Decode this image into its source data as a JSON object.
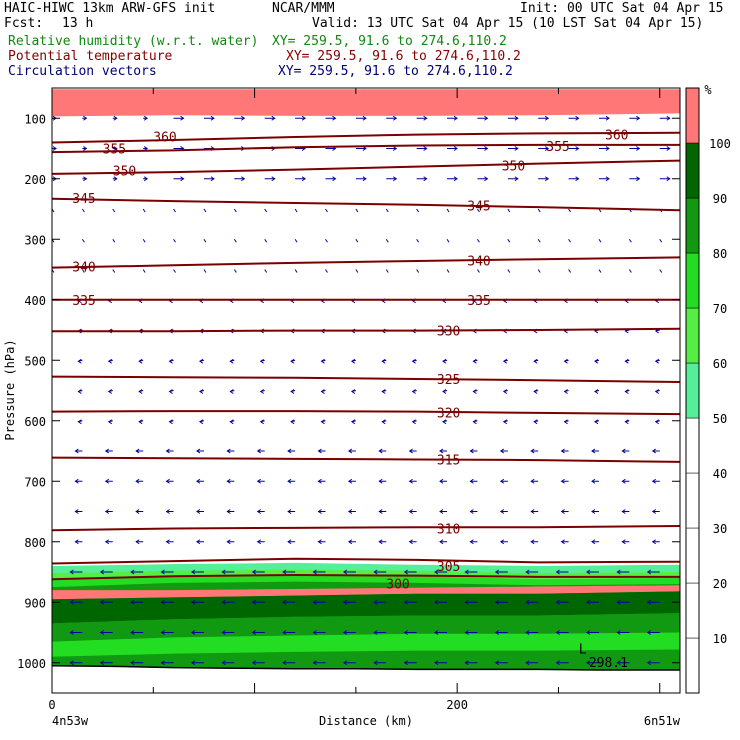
{
  "header": {
    "model": "HAIC-HIWC 13km ARW-GFS init",
    "org": "NCAR/MMM",
    "init": "Init: 00 UTC Sat 04 Apr 15",
    "fcst_label": "Fcst:",
    "fcst_value": "13 h",
    "valid": "Valid: 13 UTC Sat 04 Apr 15 (10 LST Sat 04 Apr 15)",
    "field1_name": "Relative humidity (w.r.t. water)",
    "field1_xy": "XY= 259.5, 91.6 to 274.6,110.2",
    "field2_name": "Potential temperature",
    "field2_xy": "XY= 259.5, 91.6 to 274.6,110.2",
    "field3_name": "Circulation vectors",
    "field3_xy": "XY= 259.5, 91.6 to 274.6,110.2"
  },
  "colors": {
    "rh_fill": [
      "#ffffff",
      "#ffffff",
      "#ffffff",
      "#ffffff",
      "#ffffff",
      "#55ee99",
      "#55ee44",
      "#22dd22",
      "#119911",
      "#006600",
      "#ff7777",
      "#770000"
    ],
    "theta": "#7a0000",
    "vectors": "#000099"
  },
  "chart_data": {
    "type": "heatmap",
    "xlabel": "Distance (km)",
    "ylabel": "Pressure (hPa)",
    "x_ticks": [
      "0",
      "200"
    ],
    "x_tick_values": [
      0,
      200
    ],
    "xlim": [
      0,
      310
    ],
    "y_ticks": [
      "100",
      "200",
      "300",
      "400",
      "500",
      "600",
      "700",
      "800",
      "900",
      "1000"
    ],
    "y_tick_values": [
      100,
      200,
      300,
      400,
      500,
      600,
      700,
      800,
      900,
      1000
    ],
    "ylim": [
      1050,
      50
    ],
    "left_endpoint": "4n53w",
    "right_endpoint": "6n51w",
    "colorbar": {
      "unit": "%",
      "ticks": [
        "10",
        "20",
        "30",
        "40",
        "50",
        "60",
        "70",
        "80",
        "90",
        "100"
      ],
      "levels": [
        0,
        10,
        20,
        30,
        40,
        50,
        60,
        70,
        80,
        90,
        100,
        110
      ]
    },
    "surface_pressure": [
      1005,
      1006,
      1008,
      1009,
      1010,
      1010,
      1011,
      1011,
      1011,
      1012,
      1012,
      1012
    ],
    "surface_x": [
      0,
      30,
      60,
      90,
      120,
      150,
      180,
      210,
      240,
      270,
      300,
      310
    ],
    "rh_bands": [
      {
        "level_pct": 105,
        "top": [
          52,
          52,
          52,
          52,
          52,
          52
        ],
        "bottom": [
          97,
          95,
          96,
          96,
          95,
          92
        ],
        "x": [
          0,
          60,
          120,
          180,
          240,
          310
        ]
      },
      {
        "level_pct": 55,
        "top": [
          840,
          837,
          835,
          838,
          840,
          838
        ],
        "bottom": [
          1050,
          1050,
          1050,
          1050,
          1050,
          1050
        ],
        "x": [
          0,
          60,
          120,
          180,
          240,
          310
        ]
      },
      {
        "level_pct": 65,
        "top": [
          852,
          848,
          846,
          848,
          852,
          850
        ],
        "bottom": [
          1050,
          1050,
          1050,
          1050,
          1050,
          1050
        ],
        "x": [
          0,
          60,
          120,
          180,
          240,
          310
        ]
      },
      {
        "level_pct": 75,
        "top": [
          862,
          858,
          855,
          857,
          862,
          860
        ],
        "bottom": [
          1050,
          1050,
          1050,
          1050,
          1050,
          1050
        ],
        "x": [
          0,
          60,
          120,
          180,
          240,
          310
        ]
      },
      {
        "level_pct": 85,
        "top": [
          875,
          868,
          866,
          868,
          872,
          870
        ],
        "bottom": [
          1050,
          1050,
          1050,
          1050,
          1050,
          1050
        ],
        "x": [
          0,
          60,
          120,
          180,
          240,
          310
        ]
      },
      {
        "level_pct": 105,
        "top": [
          880,
          880,
          878,
          876,
          874,
          872
        ],
        "bottom": [
          895,
          892,
          889,
          886,
          886,
          882
        ],
        "x": [
          0,
          60,
          120,
          180,
          240,
          310
        ]
      },
      {
        "level_pct": 95,
        "top": [
          895,
          892,
          889,
          886,
          886,
          882
        ],
        "bottom": [
          935,
          928,
          924,
          922,
          922,
          918
        ],
        "x": [
          0,
          60,
          120,
          180,
          240,
          310
        ]
      },
      {
        "level_pct": 85,
        "top": [
          935,
          928,
          924,
          922,
          922,
          918
        ],
        "bottom": [
          965,
          958,
          955,
          952,
          952,
          950
        ],
        "x": [
          0,
          60,
          120,
          180,
          240,
          310
        ]
      },
      {
        "level_pct": 75,
        "top": [
          965,
          958,
          955,
          952,
          952,
          950
        ],
        "bottom": [
          990,
          985,
          982,
          980,
          980,
          978
        ],
        "x": [
          0,
          60,
          120,
          180,
          240,
          310
        ]
      }
    ],
    "theta_contours": [
      {
        "value": "300",
        "p": [
          862,
          857,
          855,
          856,
          858,
          858
        ],
        "x": [
          0,
          60,
          120,
          180,
          240,
          310
        ],
        "label_at": [
          165,
          869
        ]
      },
      {
        "value": "305",
        "p": [
          836,
          832,
          828,
          830,
          834,
          833
        ],
        "x": [
          0,
          60,
          120,
          180,
          240,
          310
        ],
        "label_at": [
          190,
          840
        ]
      },
      {
        "value": "310",
        "p": [
          781,
          778,
          777,
          776,
          776,
          774
        ],
        "x": [
          0,
          60,
          120,
          180,
          240,
          310
        ],
        "label_at": [
          190,
          778
        ]
      },
      {
        "value": "315",
        "p": [
          661,
          662,
          663,
          664,
          665,
          668
        ],
        "x": [
          0,
          60,
          120,
          180,
          240,
          310
        ],
        "label_at": [
          190,
          664
        ]
      },
      {
        "value": "320",
        "p": [
          585,
          584,
          584,
          585,
          587,
          589
        ],
        "x": [
          0,
          60,
          120,
          180,
          240,
          310
        ],
        "label_at": [
          190,
          586
        ]
      },
      {
        "value": "325",
        "p": [
          527,
          528,
          529,
          531,
          533,
          536
        ],
        "x": [
          0,
          60,
          120,
          180,
          240,
          310
        ],
        "label_at": [
          190,
          531
        ]
      },
      {
        "value": "330",
        "p": [
          452,
          452,
          451,
          451,
          450,
          448
        ],
        "x": [
          0,
          60,
          120,
          180,
          240,
          310
        ],
        "label_at": [
          190,
          451
        ]
      },
      {
        "value": "335",
        "p": [
          400,
          400,
          400,
          400,
          400,
          400
        ],
        "x": [
          0,
          60,
          120,
          180,
          240,
          310
        ],
        "label_at": [
          10,
          400
        ]
      },
      {
        "value": "335",
        "p": [],
        "x": [],
        "label_at": [
          205,
          400
        ]
      },
      {
        "value": "340",
        "p": [
          347,
          343,
          339,
          336,
          333,
          330
        ],
        "x": [
          0,
          60,
          120,
          180,
          240,
          310
        ],
        "label_at": [
          10,
          345
        ]
      },
      {
        "value": "340",
        "p": [],
        "x": [],
        "label_at": [
          205,
          335
        ]
      },
      {
        "value": "345",
        "p": [
          233,
          237,
          240,
          243,
          247,
          252
        ],
        "x": [
          0,
          60,
          120,
          180,
          240,
          310
        ],
        "label_at": [
          10,
          232
        ]
      },
      {
        "value": "345",
        "p": [],
        "x": [],
        "label_at": [
          205,
          244
        ]
      },
      {
        "value": "350",
        "p": [
          192,
          189,
          185,
          180,
          175,
          170
        ],
        "x": [
          0,
          60,
          120,
          180,
          240,
          310
        ],
        "label_at": [
          30,
          186
        ]
      },
      {
        "value": "350",
        "p": [],
        "x": [],
        "label_at": [
          222,
          178
        ]
      },
      {
        "value": "355",
        "p": [
          156,
          153,
          148,
          145,
          144,
          144
        ],
        "x": [
          0,
          60,
          120,
          180,
          240,
          310
        ],
        "label_at": [
          25,
          150
        ]
      },
      {
        "value": "355",
        "p": [],
        "x": [],
        "label_at": [
          244,
          146
        ]
      },
      {
        "value": "360",
        "p": [
          140,
          136,
          131,
          127,
          125,
          124
        ],
        "x": [
          0,
          60,
          120,
          180,
          240,
          310
        ],
        "label_at": [
          50,
          130
        ]
      },
      {
        "value": "360",
        "p": [],
        "x": [],
        "label_at": [
          273,
          127
        ]
      }
    ],
    "annotations": [
      {
        "text": "L",
        "x": 260,
        "p": 978
      },
      {
        "text": "298.1",
        "x": 265,
        "p": 1000
      }
    ]
  }
}
